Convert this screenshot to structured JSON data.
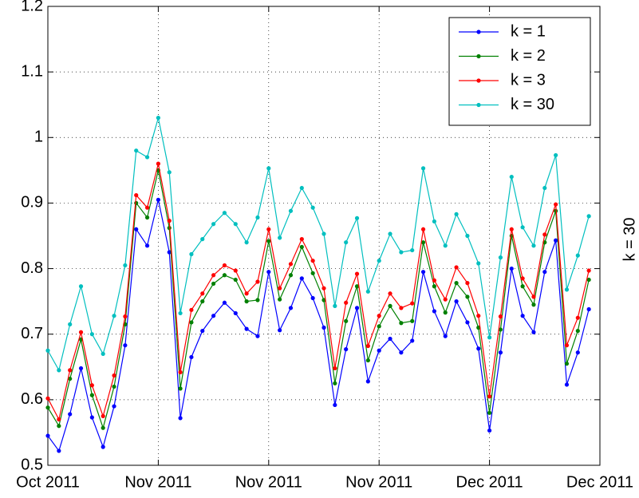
{
  "chart_data": {
    "type": "line",
    "y2label": "k = 30",
    "x": [
      0,
      1,
      2,
      3,
      4,
      5,
      6,
      7,
      8,
      9,
      10,
      11,
      12,
      13,
      14,
      15,
      16,
      17,
      18,
      19,
      20,
      21,
      22,
      23,
      24,
      25,
      26,
      27,
      28,
      29,
      30,
      31,
      32,
      33,
      34,
      35,
      36,
      37,
      38,
      39,
      40,
      41,
      42,
      43,
      44,
      45,
      46,
      47,
      48,
      49
    ],
    "xlim": [
      0,
      50
    ],
    "xticks": [
      {
        "value": 0,
        "label": "Oct 2011"
      },
      {
        "value": 10,
        "label": "Nov 2011"
      },
      {
        "value": 20,
        "label": "Nov 2011"
      },
      {
        "value": 30,
        "label": "Nov 2011"
      },
      {
        "value": 40,
        "label": "Dec 2011"
      },
      {
        "value": 50,
        "label": "Dec 2011"
      }
    ],
    "ylim": [
      0.5,
      1.2
    ],
    "yticks": [
      0.5,
      0.6,
      0.7,
      0.8,
      0.9,
      1,
      1.1,
      1.2
    ],
    "grid": true,
    "legend": "upper right",
    "series": [
      {
        "name": "k = 1",
        "color": "#0000ff",
        "values": [
          0.545,
          0.522,
          0.578,
          0.648,
          0.573,
          0.528,
          0.59,
          0.683,
          0.86,
          0.835,
          0.905,
          0.825,
          0.572,
          0.665,
          0.705,
          0.728,
          0.748,
          0.732,
          0.708,
          0.697,
          0.795,
          0.706,
          0.74,
          0.785,
          0.755,
          0.71,
          0.592,
          0.677,
          0.74,
          0.628,
          0.675,
          0.693,
          0.672,
          0.69,
          0.795,
          0.735,
          0.697,
          0.75,
          0.718,
          0.678,
          0.553,
          0.672,
          0.8,
          0.728,
          0.703,
          0.795,
          0.843,
          0.623,
          0.672,
          0.738
        ]
      },
      {
        "name": "k = 2",
        "color": "#008000",
        "values": [
          0.588,
          0.56,
          0.632,
          0.692,
          0.607,
          0.557,
          0.62,
          0.715,
          0.9,
          0.878,
          0.95,
          0.862,
          0.617,
          0.718,
          0.75,
          0.777,
          0.79,
          0.783,
          0.75,
          0.752,
          0.842,
          0.753,
          0.79,
          0.833,
          0.793,
          0.752,
          0.625,
          0.72,
          0.773,
          0.66,
          0.712,
          0.743,
          0.717,
          0.72,
          0.84,
          0.773,
          0.733,
          0.778,
          0.757,
          0.71,
          0.58,
          0.707,
          0.85,
          0.773,
          0.745,
          0.84,
          0.888,
          0.655,
          0.705,
          0.783
        ]
      },
      {
        "name": "k = 3",
        "color": "#ff0000",
        "values": [
          0.602,
          0.57,
          0.645,
          0.703,
          0.622,
          0.575,
          0.637,
          0.727,
          0.912,
          0.893,
          0.96,
          0.873,
          0.642,
          0.737,
          0.762,
          0.79,
          0.805,
          0.797,
          0.762,
          0.78,
          0.86,
          0.77,
          0.807,
          0.845,
          0.812,
          0.77,
          0.648,
          0.748,
          0.792,
          0.682,
          0.728,
          0.762,
          0.74,
          0.747,
          0.86,
          0.782,
          0.753,
          0.802,
          0.778,
          0.728,
          0.605,
          0.727,
          0.86,
          0.785,
          0.757,
          0.852,
          0.898,
          0.683,
          0.725,
          0.797
        ]
      },
      {
        "name": "k = 30",
        "color": "#00bfbf",
        "values": [
          0.675,
          0.645,
          0.715,
          0.773,
          0.7,
          0.67,
          0.728,
          0.805,
          0.98,
          0.97,
          1.03,
          0.947,
          0.732,
          0.822,
          0.845,
          0.868,
          0.885,
          0.868,
          0.84,
          0.878,
          0.953,
          0.847,
          0.888,
          0.923,
          0.893,
          0.853,
          0.743,
          0.84,
          0.877,
          0.765,
          0.812,
          0.853,
          0.825,
          0.828,
          0.953,
          0.872,
          0.835,
          0.883,
          0.85,
          0.808,
          0.695,
          0.817,
          0.94,
          0.863,
          0.835,
          0.923,
          0.973,
          0.768,
          0.82,
          0.88
        ]
      }
    ]
  }
}
